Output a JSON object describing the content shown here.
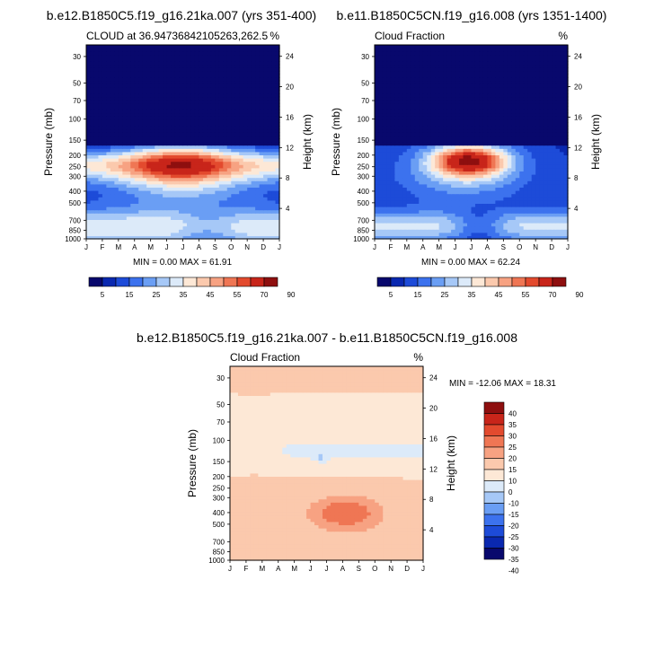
{
  "months": [
    "J",
    "F",
    "M",
    "A",
    "M",
    "J",
    "J",
    "A",
    "S",
    "O",
    "N",
    "D",
    "J"
  ],
  "pressure_ticks": [
    "30",
    "50",
    "70",
    "100",
    "150",
    "200",
    "250",
    "300",
    "400",
    "500",
    "700",
    "850",
    "1000"
  ],
  "pressure_values": [
    30,
    50,
    70,
    100,
    150,
    200,
    250,
    300,
    400,
    500,
    700,
    850,
    1000
  ],
  "height_ticks": [
    "24",
    "20",
    "16",
    "12",
    "8",
    "4"
  ],
  "height_values": [
    24,
    20,
    16,
    12,
    8,
    4
  ],
  "units": "%",
  "left_axis_label": "Pressure (mb)",
  "right_axis_label": "Height (km)",
  "colors": {
    "seq": [
      "#08086d",
      "#0a28b0",
      "#1d4bd8",
      "#3c72ee",
      "#6a9ef4",
      "#a6c8f7",
      "#dceaf9",
      "#fde8d6",
      "#fbc9ad",
      "#f7a282",
      "#ef7654",
      "#e34a2e",
      "#c8251a",
      "#8e0f0f"
    ],
    "div": [
      "#08086d",
      "#0a28b0",
      "#1d4bd8",
      "#3c72ee",
      "#6a9ef4",
      "#a6c8f7",
      "#dceaf9",
      "#fde8d6",
      "#fbc9ad",
      "#f7a282",
      "#ef7654",
      "#e34a2e",
      "#c8251a",
      "#8e0f0f"
    ]
  },
  "chart_data": [
    {
      "type": "heatmap",
      "title": "b.e12.B1850C5.f19_g16.21ka.007 (yrs 351-400)",
      "subtitle_left": "CLOUD at 36.94736842105263,262.5",
      "subtitle_right": "%",
      "stats": "MIN =  0.00 MAX =  61.91",
      "min": 0.0,
      "max": 61.91,
      "colorbar_labels": [
        "5",
        "15",
        "25",
        "35",
        "45",
        "55",
        "70",
        "90"
      ],
      "colorbar_levels": [
        5,
        10,
        15,
        20,
        25,
        30,
        35,
        40,
        45,
        50,
        55,
        60,
        70,
        90
      ]
    },
    {
      "type": "heatmap",
      "title": "b.e11.B1850C5CN.f19_g16.008 (yrs 1351-1400)",
      "subtitle_left": "Cloud Fraction",
      "subtitle_right": "%",
      "stats": "MIN =  0.00 MAX =  62.24",
      "min": 0.0,
      "max": 62.24,
      "colorbar_labels": [
        "5",
        "15",
        "25",
        "35",
        "45",
        "55",
        "70",
        "90"
      ],
      "colorbar_levels": [
        5,
        10,
        15,
        20,
        25,
        30,
        35,
        40,
        45,
        50,
        55,
        60,
        70,
        90
      ]
    },
    {
      "type": "heatmap",
      "title": "b.e12.B1850C5.f19_g16.21ka.007 - b.e11.B1850C5CN.f19_g16.008",
      "subtitle_left": "Cloud Fraction",
      "subtitle_right": "%",
      "stats": "MIN = -12.06 MAX =  18.31",
      "min": -12.06,
      "max": 18.31,
      "colorbar_labels": [
        "40",
        "35",
        "30",
        "25",
        "20",
        "15",
        "10",
        "0",
        "-10",
        "-15",
        "-20",
        "-25",
        "-30",
        "-35",
        "-40"
      ],
      "colorbar_levels": [
        -40,
        -35,
        -30,
        -25,
        -20,
        -15,
        -10,
        0,
        10,
        15,
        20,
        25,
        30,
        35,
        40
      ]
    }
  ]
}
